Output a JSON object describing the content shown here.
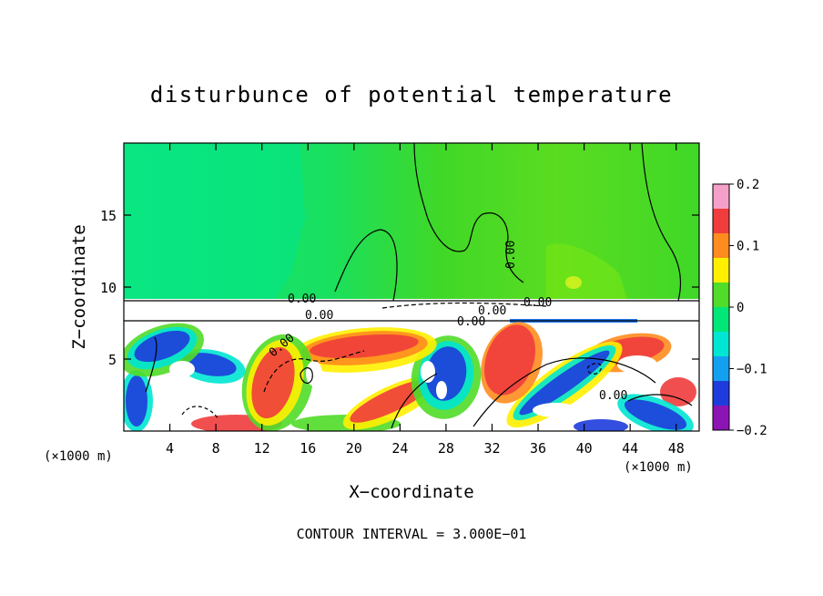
{
  "chart_data": {
    "type": "heatmap",
    "title": "disturbunce of potential temperature",
    "xlabel": "X−coordinate",
    "ylabel": "Z−coordinate",
    "x_unit_label": "(×1000 m)",
    "x_unit_label_right": "(×1000 m)",
    "xlim": [
      0,
      50
    ],
    "ylim": [
      0,
      20
    ],
    "x_ticks": [
      4,
      8,
      12,
      16,
      20,
      24,
      28,
      32,
      36,
      40,
      44,
      48
    ],
    "x_tick_labels": [
      "4",
      "8",
      "12",
      "16",
      "20",
      "24",
      "28",
      "32",
      "36",
      "40",
      "44",
      "48"
    ],
    "y_ticks": [
      5,
      10,
      15
    ],
    "y_tick_labels": [
      "5",
      "10",
      "15"
    ],
    "colorbar": {
      "min": -0.2,
      "max": 0.2,
      "tick_values": [
        0.2,
        0.1,
        0,
        -0.1,
        -0.2
      ],
      "tick_labels": [
        "0.2",
        "0.1",
        "0",
        "−0.1",
        "−0.2"
      ],
      "colors": [
        "#f5a0c8",
        "#f03c3c",
        "#ff8c1e",
        "#fff000",
        "#50dc28",
        "#00e678",
        "#00e6d2",
        "#14a0f0",
        "#1e3cdc",
        "#8c14b4"
      ]
    },
    "contour_labels": [
      "0.00",
      "0.00",
      "0.00",
      "0.00",
      "0.00",
      "0.00",
      "0.00",
      "0.00"
    ],
    "footer": "CONTOUR INTERVAL = 3.000E−01",
    "regions": {
      "upper": {
        "z_range": [
          9,
          20
        ],
        "approx_value": 0.0
      },
      "inversion_layer": {
        "z_range": [
          7.5,
          9
        ]
      },
      "lower_turbulent": {
        "z_range": [
          0,
          7.5
        ]
      }
    }
  }
}
